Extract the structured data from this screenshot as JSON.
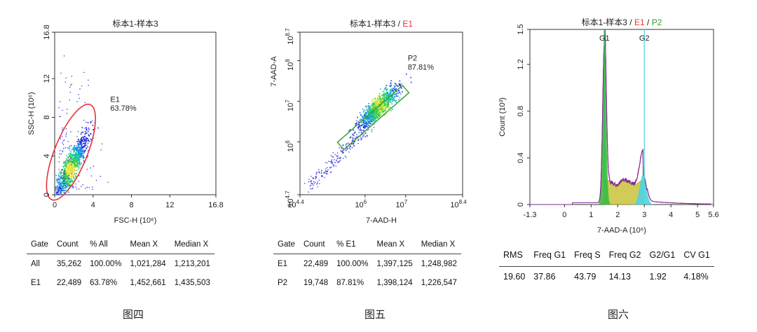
{
  "chart_data": [
    {
      "type": "scatter",
      "title": "标本1-样本3",
      "title_parts": [
        {
          "text": "标本1-样本3",
          "color": "#222222"
        }
      ],
      "xlabel": "FSC-H (10^6)",
      "ylabel": "SSC-H (10^6)",
      "x_ticks": [
        "0",
        "4",
        "8",
        "12",
        "16.8"
      ],
      "y_ticks": [
        "0",
        "4",
        "8",
        "12",
        "16.8"
      ],
      "xlim": [
        0,
        16.8
      ],
      "ylim": [
        0,
        16.8
      ],
      "gates": [
        {
          "name": "E1",
          "percent": "63.78%",
          "shape": "ellipse",
          "color": "#e8323c"
        }
      ],
      "density_center": [
        1.6,
        2.6
      ],
      "caption": "图四"
    },
    {
      "type": "scatter",
      "title": "标本1-样本3 / E1",
      "title_parts": [
        {
          "text": "标本1-样本3",
          "color": "#222222"
        },
        {
          "text": " / ",
          "color": "#222222"
        },
        {
          "text": "E1",
          "color": "#e8323c"
        }
      ],
      "xlabel": "7-AAD-H",
      "ylabel": "7-AAD-A",
      "x_scale": "log",
      "y_scale": "log",
      "x_ticks": [
        {
          "base": "10",
          "exp": "4.4"
        },
        {
          "base": "10",
          "exp": "6"
        },
        {
          "base": "10",
          "exp": "7"
        },
        {
          "base": "10",
          "exp": "8.4"
        }
      ],
      "y_ticks": [
        {
          "base": "10",
          "exp": "4.7"
        },
        {
          "base": "10",
          "exp": "6"
        },
        {
          "base": "10",
          "exp": "7"
        },
        {
          "base": "10",
          "exp": "8"
        },
        {
          "base": "10",
          "exp": "8.7"
        }
      ],
      "xlim": [
        4.4,
        8.4
      ],
      "ylim": [
        4.7,
        8.7
      ],
      "gates": [
        {
          "name": "P2",
          "percent": "87.81%",
          "shape": "rotated-rectangle",
          "color": "#2e9e2e"
        }
      ],
      "caption": "图五"
    },
    {
      "type": "area",
      "title": "标本1-样本3 / E1 / P2",
      "title_parts": [
        {
          "text": "标本1-样本3",
          "color": "#222222"
        },
        {
          "text": " / ",
          "color": "#222222"
        },
        {
          "text": "E1",
          "color": "#e8323c"
        },
        {
          "text": " / ",
          "color": "#222222"
        },
        {
          "text": "P2",
          "color": "#2e9e2e"
        }
      ],
      "xlabel": "7-AAD-A (10^6)",
      "ylabel": "Count (10^3)",
      "x_ticks": [
        "-1.3",
        "0",
        "1",
        "2",
        "3",
        "4",
        "5",
        "5.6"
      ],
      "y_ticks": [
        "0",
        "0.4",
        "0.8",
        "1.2",
        "1.5"
      ],
      "xlim": [
        -1.3,
        5.6
      ],
      "ylim": [
        0,
        1.5
      ],
      "markers": [
        {
          "name": "G1",
          "x": 1.5,
          "color": "#2fbf4a"
        },
        {
          "name": "G2",
          "x": 3.0,
          "color": "#4fd3e0"
        }
      ],
      "peaks": [
        {
          "name": "G1",
          "x": 1.5,
          "y": 1.38
        },
        {
          "name": "G2",
          "x": 2.95,
          "y": 0.29
        }
      ],
      "caption": "图六"
    }
  ],
  "tables": {
    "t4": {
      "headers": [
        "Gate",
        "Count",
        "% All",
        "Mean X",
        "Median X"
      ],
      "rows": [
        [
          "All",
          "35,262",
          "100.00%",
          "1,021,284",
          "1,213,201"
        ],
        [
          "E1",
          "22,489",
          "63.78%",
          "1,452,661",
          "1,435,503"
        ]
      ]
    },
    "t5": {
      "headers": [
        "Gate",
        "Count",
        "% E1",
        "Mean X",
        "Median X"
      ],
      "rows": [
        [
          "E1",
          "22,489",
          "100.00%",
          "1,397,125",
          "1,248,982"
        ],
        [
          "P2",
          "19,748",
          "87.81%",
          "1,398,124",
          "1,226,547"
        ]
      ]
    },
    "t6": {
      "headers": [
        "RMS",
        "Freq G1",
        "Freq S",
        "Freq G2",
        "G2/G1",
        "CV G1"
      ],
      "rows": [
        [
          "19.60",
          "37.86",
          "43.79",
          "14.13",
          "1.92",
          "4.18%"
        ]
      ]
    }
  },
  "colors": {
    "gate_red": "#e8323c",
    "gate_green": "#2e9e2e",
    "dot_blue": "#2a2fd6",
    "g1_fill": "#3fb83f",
    "s_fill": "#c9c23a",
    "g2_fill": "#4fd3e0"
  }
}
